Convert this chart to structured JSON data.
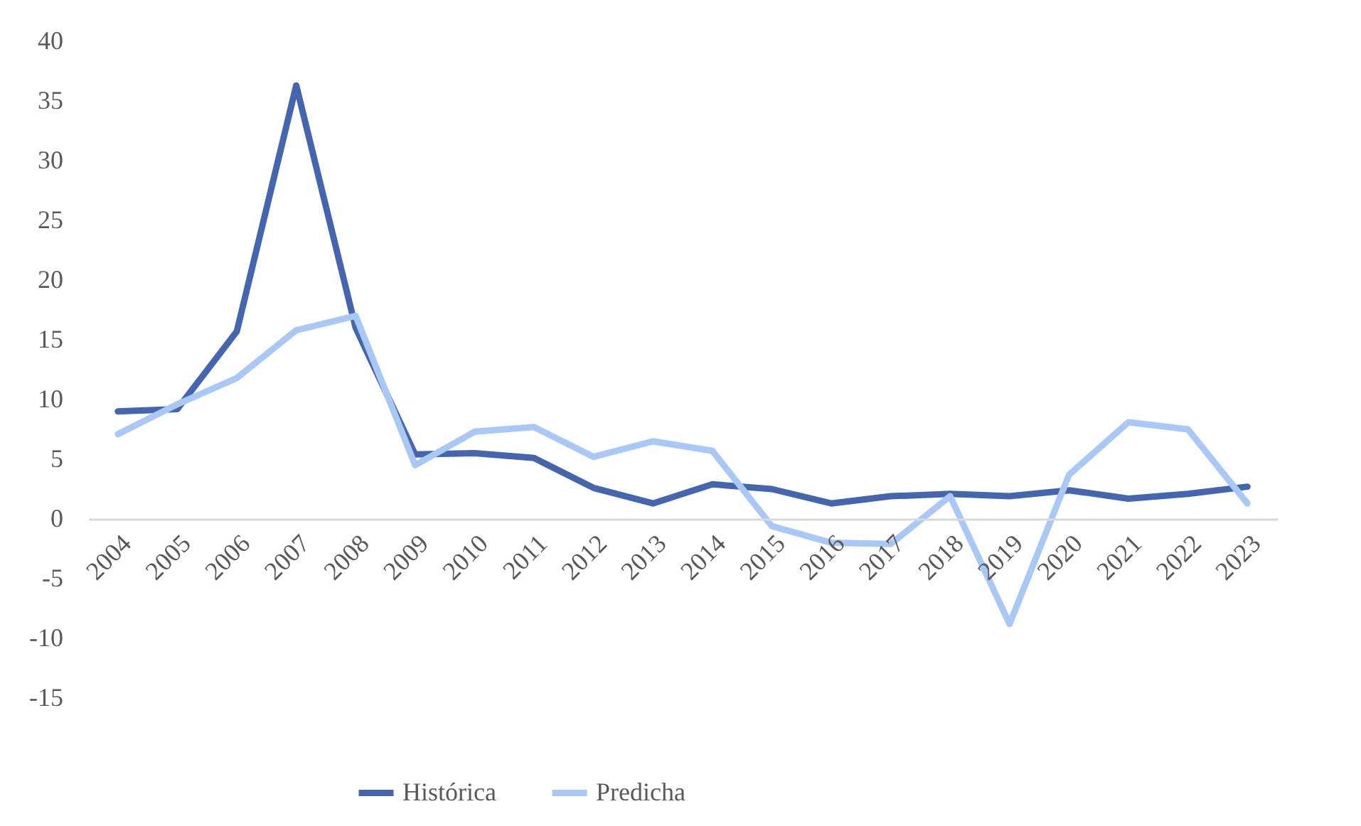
{
  "chart_data": {
    "type": "line",
    "categories": [
      "2004",
      "2005",
      "2006",
      "2007",
      "2008",
      "2009",
      "2010",
      "2011",
      "2012",
      "2013",
      "2014",
      "2015",
      "2016",
      "2017",
      "2018",
      "2019",
      "2020",
      "2021",
      "2022",
      "2023"
    ],
    "series": [
      {
        "name": "Histórica",
        "color": "#4565ae",
        "values": [
          9.0,
          9.2,
          15.7,
          36.3,
          16.0,
          5.4,
          5.5,
          5.1,
          2.6,
          1.3,
          2.9,
          2.5,
          1.3,
          1.9,
          2.1,
          1.9,
          2.4,
          1.7,
          2.1,
          2.7
        ]
      },
      {
        "name": "Predicha",
        "color": "#a9c8f5",
        "values": [
          7.1,
          9.6,
          11.8,
          15.8,
          17.0,
          4.5,
          7.3,
          7.7,
          5.2,
          6.5,
          5.7,
          -0.6,
          -2.0,
          -2.1,
          1.9,
          -8.8,
          3.7,
          8.1,
          7.5,
          1.3
        ]
      }
    ],
    "ylim": [
      -15,
      40
    ],
    "yticks": [
      -15,
      -10,
      -5,
      0,
      5,
      10,
      15,
      20,
      25,
      30,
      35,
      40
    ],
    "legend": "bottom",
    "line_style": "solid",
    "marker": "none"
  }
}
